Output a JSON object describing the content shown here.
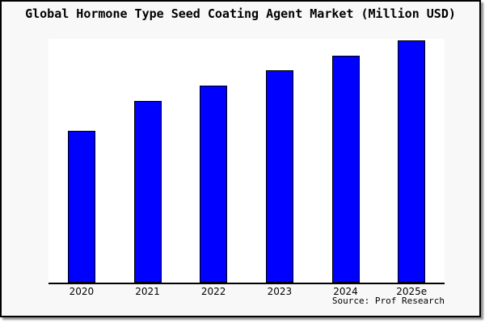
{
  "title": "Global Hormone Type Seed Coating Agent Market (Million USD)",
  "source": "Source: Prof Research",
  "colors": {
    "bar_fill": "#0000ff",
    "bar_border": "#000000",
    "background": "#f8f8f8",
    "plot_background": "#ffffff",
    "frame_border": "#000000",
    "axis_line": "#000000"
  },
  "chart_data": {
    "type": "bar",
    "title": "Global Hormone Type Seed Coating Agent Market (Million USD)",
    "categories": [
      "2020",
      "2021",
      "2022",
      "2023",
      "2024",
      "2025e"
    ],
    "values": [
      62.3,
      74.5,
      80.8,
      87.1,
      93.0,
      99.3
    ],
    "xlabel": "",
    "ylabel": "",
    "ylim": [
      0,
      100
    ],
    "grid": false,
    "legend": false,
    "y_axis_visible": false,
    "x_axis_visible": true,
    "annotation": "Source: Prof Research"
  }
}
